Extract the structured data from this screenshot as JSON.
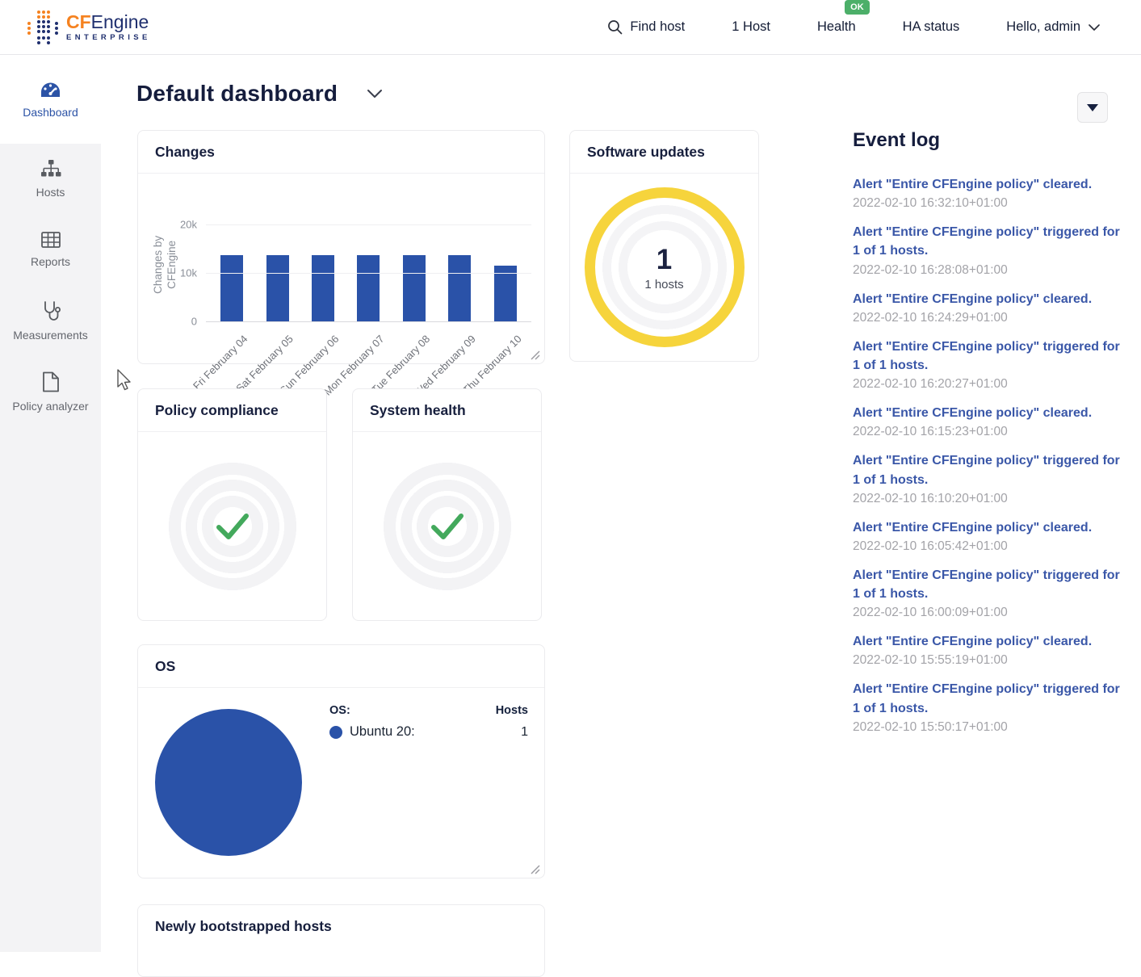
{
  "header": {
    "logo": {
      "cf": "CF",
      "engine": "Engine",
      "subtitle": "ENTERPRISE"
    },
    "find_host": "Find host",
    "hosts_count": "1 Host",
    "health": "Health",
    "health_badge": "OK",
    "ha_status": "HA status",
    "user_menu": "Hello, admin"
  },
  "sidebar": {
    "items": [
      {
        "label": "Dashboard",
        "icon": "gauge-icon",
        "active": true
      },
      {
        "label": "Hosts",
        "icon": "sitemap-icon",
        "active": false
      },
      {
        "label": "Reports",
        "icon": "table-icon",
        "active": false
      },
      {
        "label": "Measurements",
        "icon": "stethoscope-icon",
        "active": false
      },
      {
        "label": "Policy analyzer",
        "icon": "file-icon",
        "active": false
      }
    ]
  },
  "page": {
    "title": "Default dashboard"
  },
  "widgets": {
    "changes": {
      "title": "Changes"
    },
    "software_updates": {
      "title": "Software updates",
      "count": "1",
      "subtitle": "1 hosts"
    },
    "policy_compliance": {
      "title": "Policy compliance",
      "status": "ok"
    },
    "system_health": {
      "title": "System health",
      "status": "ok"
    },
    "os": {
      "title": "OS",
      "legend_header": "OS:",
      "hosts_header": "Hosts",
      "items": [
        {
          "label": "Ubuntu 20:",
          "value": "1",
          "color": "#2a52a8"
        }
      ]
    },
    "newly_bootstrapped": {
      "title": "Newly bootstrapped hosts"
    }
  },
  "chart_data": [
    {
      "type": "bar",
      "widget": "changes",
      "title": "Changes",
      "categories": [
        "Fri February 04",
        "Sat February 05",
        "Sun February 06",
        "Mon February 07",
        "Tue February 08",
        "Wed February 09",
        "Thu February 10"
      ],
      "values": [
        13700,
        13700,
        13700,
        13700,
        13700,
        13700,
        11500
      ],
      "xlabel": "",
      "ylabel": "Changes by CFEngine",
      "ylim": [
        0,
        20000
      ],
      "yticks": [
        {
          "value": 0,
          "label": "0"
        },
        {
          "value": 10000,
          "label": "10k"
        },
        {
          "value": 20000,
          "label": "20k"
        }
      ],
      "grid": true,
      "bar_color": "#2a52a8"
    },
    {
      "type": "pie",
      "widget": "os",
      "slices": [
        {
          "label": "Ubuntu 20:",
          "value": 1,
          "color": "#2a52a8"
        }
      ]
    }
  ],
  "event_log": {
    "title": "Event log",
    "entries": [
      {
        "text": "Alert \"Entire CFEngine policy\" cleared.",
        "time": "2022-02-10 16:32:10+01:00"
      },
      {
        "text": "Alert \"Entire CFEngine policy\" triggered for 1 of 1 hosts.",
        "time": "2022-02-10 16:28:08+01:00"
      },
      {
        "text": "Alert \"Entire CFEngine policy\" cleared.",
        "time": "2022-02-10 16:24:29+01:00"
      },
      {
        "text": "Alert \"Entire CFEngine policy\" triggered for 1 of 1 hosts.",
        "time": "2022-02-10 16:20:27+01:00"
      },
      {
        "text": "Alert \"Entire CFEngine policy\" cleared.",
        "time": "2022-02-10 16:15:23+01:00"
      },
      {
        "text": "Alert \"Entire CFEngine policy\" triggered for 1 of 1 hosts.",
        "time": "2022-02-10 16:10:20+01:00"
      },
      {
        "text": "Alert \"Entire CFEngine policy\" cleared.",
        "time": "2022-02-10 16:05:42+01:00"
      },
      {
        "text": "Alert \"Entire CFEngine policy\" triggered for 1 of 1 hosts.",
        "time": "2022-02-10 16:00:09+01:00"
      },
      {
        "text": "Alert \"Entire CFEngine policy\" cleared.",
        "time": "2022-02-10 15:55:19+01:00"
      },
      {
        "text": "Alert \"Entire CFEngine policy\" triggered for 1 of 1 hosts.",
        "time": "2022-02-10 15:50:17+01:00"
      }
    ]
  },
  "colors": {
    "accent_blue": "#2a52a8",
    "brand_orange": "#f58220",
    "brand_navy": "#20306f",
    "ok_green": "#4caf69",
    "check_green": "#43a95c",
    "ring_yellow": "#f6d43c",
    "link_blue": "#3a57a8",
    "text_dark": "#1b2240",
    "text_gray": "#8a8f98"
  }
}
